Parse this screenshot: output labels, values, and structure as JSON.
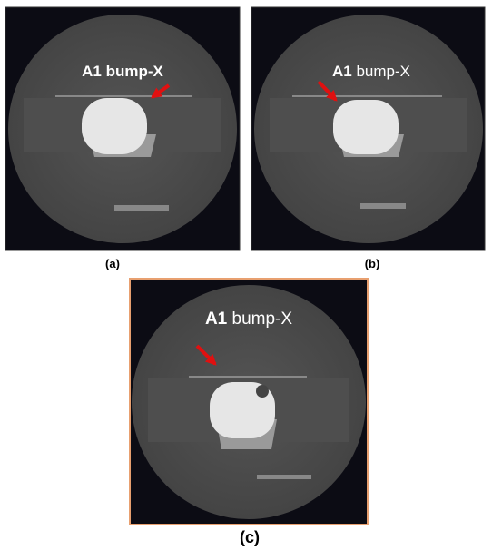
{
  "panels": [
    {
      "caption": "(a)",
      "annotation": {
        "bold": "A1",
        "text": "bump-X"
      }
    },
    {
      "caption": "(b)",
      "annotation": {
        "bold": "A1",
        "text": "bump-X"
      }
    },
    {
      "caption": "(c)",
      "annotation": {
        "bold": "A1",
        "text": "bump-X"
      }
    }
  ]
}
